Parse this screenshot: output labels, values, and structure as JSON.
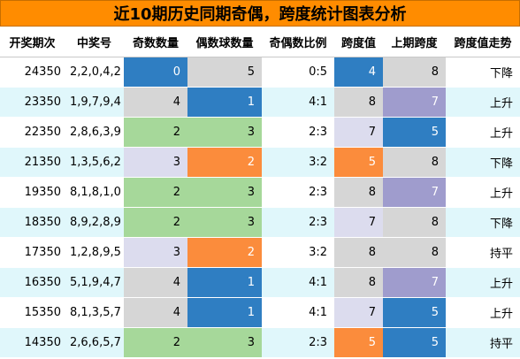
{
  "title": "近10期历史同期奇偶，跨度统计图表分析",
  "headers": [
    "开奖期次",
    "中奖号",
    "奇数数量",
    "偶数球数量",
    "奇偶数比例",
    "跨度值",
    "上期跨度",
    "跨度值走势"
  ],
  "colors": {
    "blue": "#2f7ec2",
    "gray": "#d6d6d6",
    "green": "#a6d89a",
    "lavender": "#dcdcee",
    "orange": "#fb8c3c",
    "purple": "#9f9ccd",
    "title_bg": "#ff8c00",
    "alt_row": "#e0f7fb"
  },
  "rows": [
    {
      "issue": "24350",
      "numbers": "2,2,0,4,2",
      "odd": "0",
      "even": "5",
      "ratio": "0:5",
      "span": "4",
      "prev_span": "8",
      "trend": "下降",
      "odd_color": "blue",
      "even_color": "gray",
      "span_color": "blue",
      "prev_color": "gray"
    },
    {
      "issue": "23350",
      "numbers": "1,9,7,9,4",
      "odd": "4",
      "even": "1",
      "ratio": "4:1",
      "span": "8",
      "prev_span": "7",
      "trend": "上升",
      "odd_color": "gray",
      "even_color": "blue",
      "span_color": "gray",
      "prev_color": "purple"
    },
    {
      "issue": "22350",
      "numbers": "2,8,6,3,9",
      "odd": "2",
      "even": "3",
      "ratio": "2:3",
      "span": "7",
      "prev_span": "5",
      "trend": "上升",
      "odd_color": "green",
      "even_color": "green",
      "span_color": "lavender",
      "prev_color": "blue"
    },
    {
      "issue": "21350",
      "numbers": "1,3,5,6,2",
      "odd": "3",
      "even": "2",
      "ratio": "3:2",
      "span": "5",
      "prev_span": "8",
      "trend": "下降",
      "odd_color": "lavender",
      "even_color": "orange",
      "span_color": "orange",
      "prev_color": "gray"
    },
    {
      "issue": "19350",
      "numbers": "8,1,8,1,0",
      "odd": "2",
      "even": "3",
      "ratio": "2:3",
      "span": "8",
      "prev_span": "7",
      "trend": "上升",
      "odd_color": "green",
      "even_color": "green",
      "span_color": "gray",
      "prev_color": "purple"
    },
    {
      "issue": "18350",
      "numbers": "8,9,2,8,9",
      "odd": "2",
      "even": "3",
      "ratio": "2:3",
      "span": "7",
      "prev_span": "8",
      "trend": "下降",
      "odd_color": "green",
      "even_color": "green",
      "span_color": "lavender",
      "prev_color": "gray"
    },
    {
      "issue": "17350",
      "numbers": "1,2,8,9,5",
      "odd": "3",
      "even": "2",
      "ratio": "3:2",
      "span": "8",
      "prev_span": "8",
      "trend": "持平",
      "odd_color": "lavender",
      "even_color": "orange",
      "span_color": "gray",
      "prev_color": "gray"
    },
    {
      "issue": "16350",
      "numbers": "5,1,9,4,7",
      "odd": "4",
      "even": "1",
      "ratio": "4:1",
      "span": "8",
      "prev_span": "7",
      "trend": "上升",
      "odd_color": "gray",
      "even_color": "blue",
      "span_color": "gray",
      "prev_color": "purple"
    },
    {
      "issue": "15350",
      "numbers": "8,1,3,5,7",
      "odd": "4",
      "even": "1",
      "ratio": "4:1",
      "span": "7",
      "prev_span": "5",
      "trend": "上升",
      "odd_color": "gray",
      "even_color": "blue",
      "span_color": "lavender",
      "prev_color": "blue"
    },
    {
      "issue": "14350",
      "numbers": "2,6,6,5,7",
      "odd": "2",
      "even": "3",
      "ratio": "2:3",
      "span": "5",
      "prev_span": "5",
      "trend": "持平",
      "odd_color": "green",
      "even_color": "green",
      "span_color": "orange",
      "prev_color": "blue"
    }
  ]
}
